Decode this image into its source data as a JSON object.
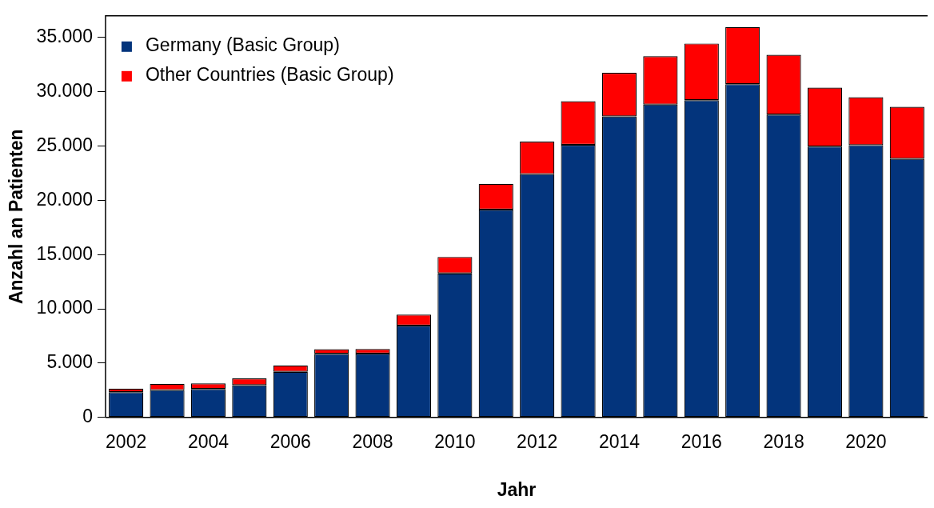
{
  "chart_data": {
    "type": "bar",
    "stacked": true,
    "xlabel": "Jahr",
    "ylabel": "Anzahl an Patienten",
    "categories": [
      "2002",
      null,
      "2004",
      null,
      "2006",
      null,
      "2008",
      null,
      "2010",
      null,
      "2012",
      null,
      "2014",
      null,
      "2016",
      null,
      "2018",
      null,
      "2020",
      null
    ],
    "series": [
      {
        "name": "Germany (Basic Group)",
        "color": "#03347c",
        "values": [
          2330,
          2520,
          2620,
          2970,
          4200,
          5860,
          5880,
          8460,
          13270,
          19150,
          22420,
          25120,
          27740,
          28830,
          29230,
          30710,
          27900,
          24960,
          25090,
          23830
        ]
      },
      {
        "name": "Other Countries (Basic Group)",
        "color": "#ff0000",
        "values": [
          320,
          580,
          510,
          620,
          590,
          430,
          430,
          1010,
          1520,
          2370,
          2990,
          4010,
          4010,
          4450,
          5220,
          5260,
          5510,
          5420,
          4410,
          4790
        ]
      }
    ],
    "ylim": [
      0,
      37000
    ],
    "yticks": [
      0,
      {
        "value": 5000,
        "label": "5.000"
      },
      {
        "value": 10000,
        "label": "10.000"
      },
      {
        "value": 15000,
        "label": "15.000"
      },
      {
        "value": 20000,
        "label": "20.000"
      },
      {
        "value": 25000,
        "label": "25.000"
      },
      {
        "value": 30000,
        "label": "30.000"
      },
      {
        "value": 35000,
        "label": "35.000"
      }
    ],
    "grid": false,
    "legend": "top left"
  }
}
